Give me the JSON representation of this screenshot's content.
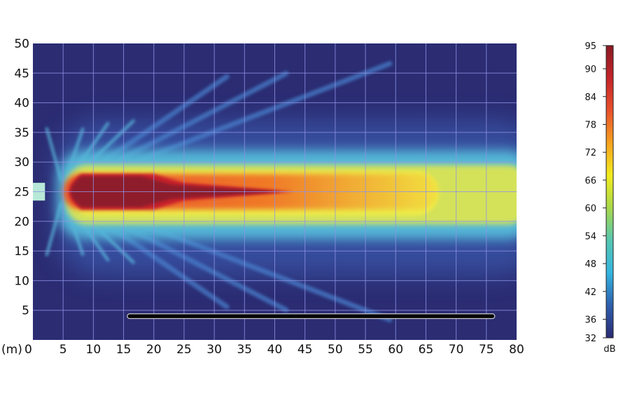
{
  "chart_data": {
    "type": "heatmap",
    "title": "",
    "xlabel": "(m)",
    "ylabel": "",
    "xlim": [
      0,
      80
    ],
    "ylim": [
      0,
      50
    ],
    "x_ticks": [
      "0",
      "5",
      "10",
      "15",
      "20",
      "25",
      "30",
      "35",
      "40",
      "45",
      "50",
      "55",
      "60",
      "65",
      "70",
      "75",
      "80"
    ],
    "y_ticks": [
      "5",
      "10",
      "15",
      "20",
      "25",
      "30",
      "35",
      "40",
      "45",
      "50"
    ],
    "grid": true,
    "colorbar": {
      "unit": "dB",
      "range": [
        32,
        95
      ],
      "ticks": [
        "95",
        "90",
        "84",
        "78",
        "72",
        "66",
        "60",
        "54",
        "48",
        "42",
        "36",
        "32"
      ],
      "colors": [
        "#2a2a72",
        "#2d5fae",
        "#33b5e0",
        "#55c6b0",
        "#a8d84a",
        "#f2ec1e",
        "#f6a21e",
        "#e8502a",
        "#c4242a",
        "#8a1a22"
      ]
    },
    "source": {
      "x": 0,
      "y": 25
    },
    "barrier": {
      "x_start": 16,
      "x_end": 76,
      "y": 4
    },
    "field_levels": [
      {
        "label": "core",
        "x_end": 43,
        "y_range": [
          22.5,
          27.5
        ],
        "level_db": 92
      },
      {
        "label": "orange",
        "x_end": 67,
        "y_range": [
          22,
          28
        ],
        "level_db": 82
      },
      {
        "label": "yellow",
        "x_end": 80,
        "y_range": [
          19.5,
          29.5
        ],
        "level_db": 72
      },
      {
        "label": "cyan",
        "x_end": 80,
        "y_range": [
          17,
          32
        ],
        "level_db": 50
      },
      {
        "label": "background",
        "level_db": 34
      }
    ],
    "colors": {
      "background": "#2b2c72",
      "grid": "#8f93e6"
    }
  }
}
